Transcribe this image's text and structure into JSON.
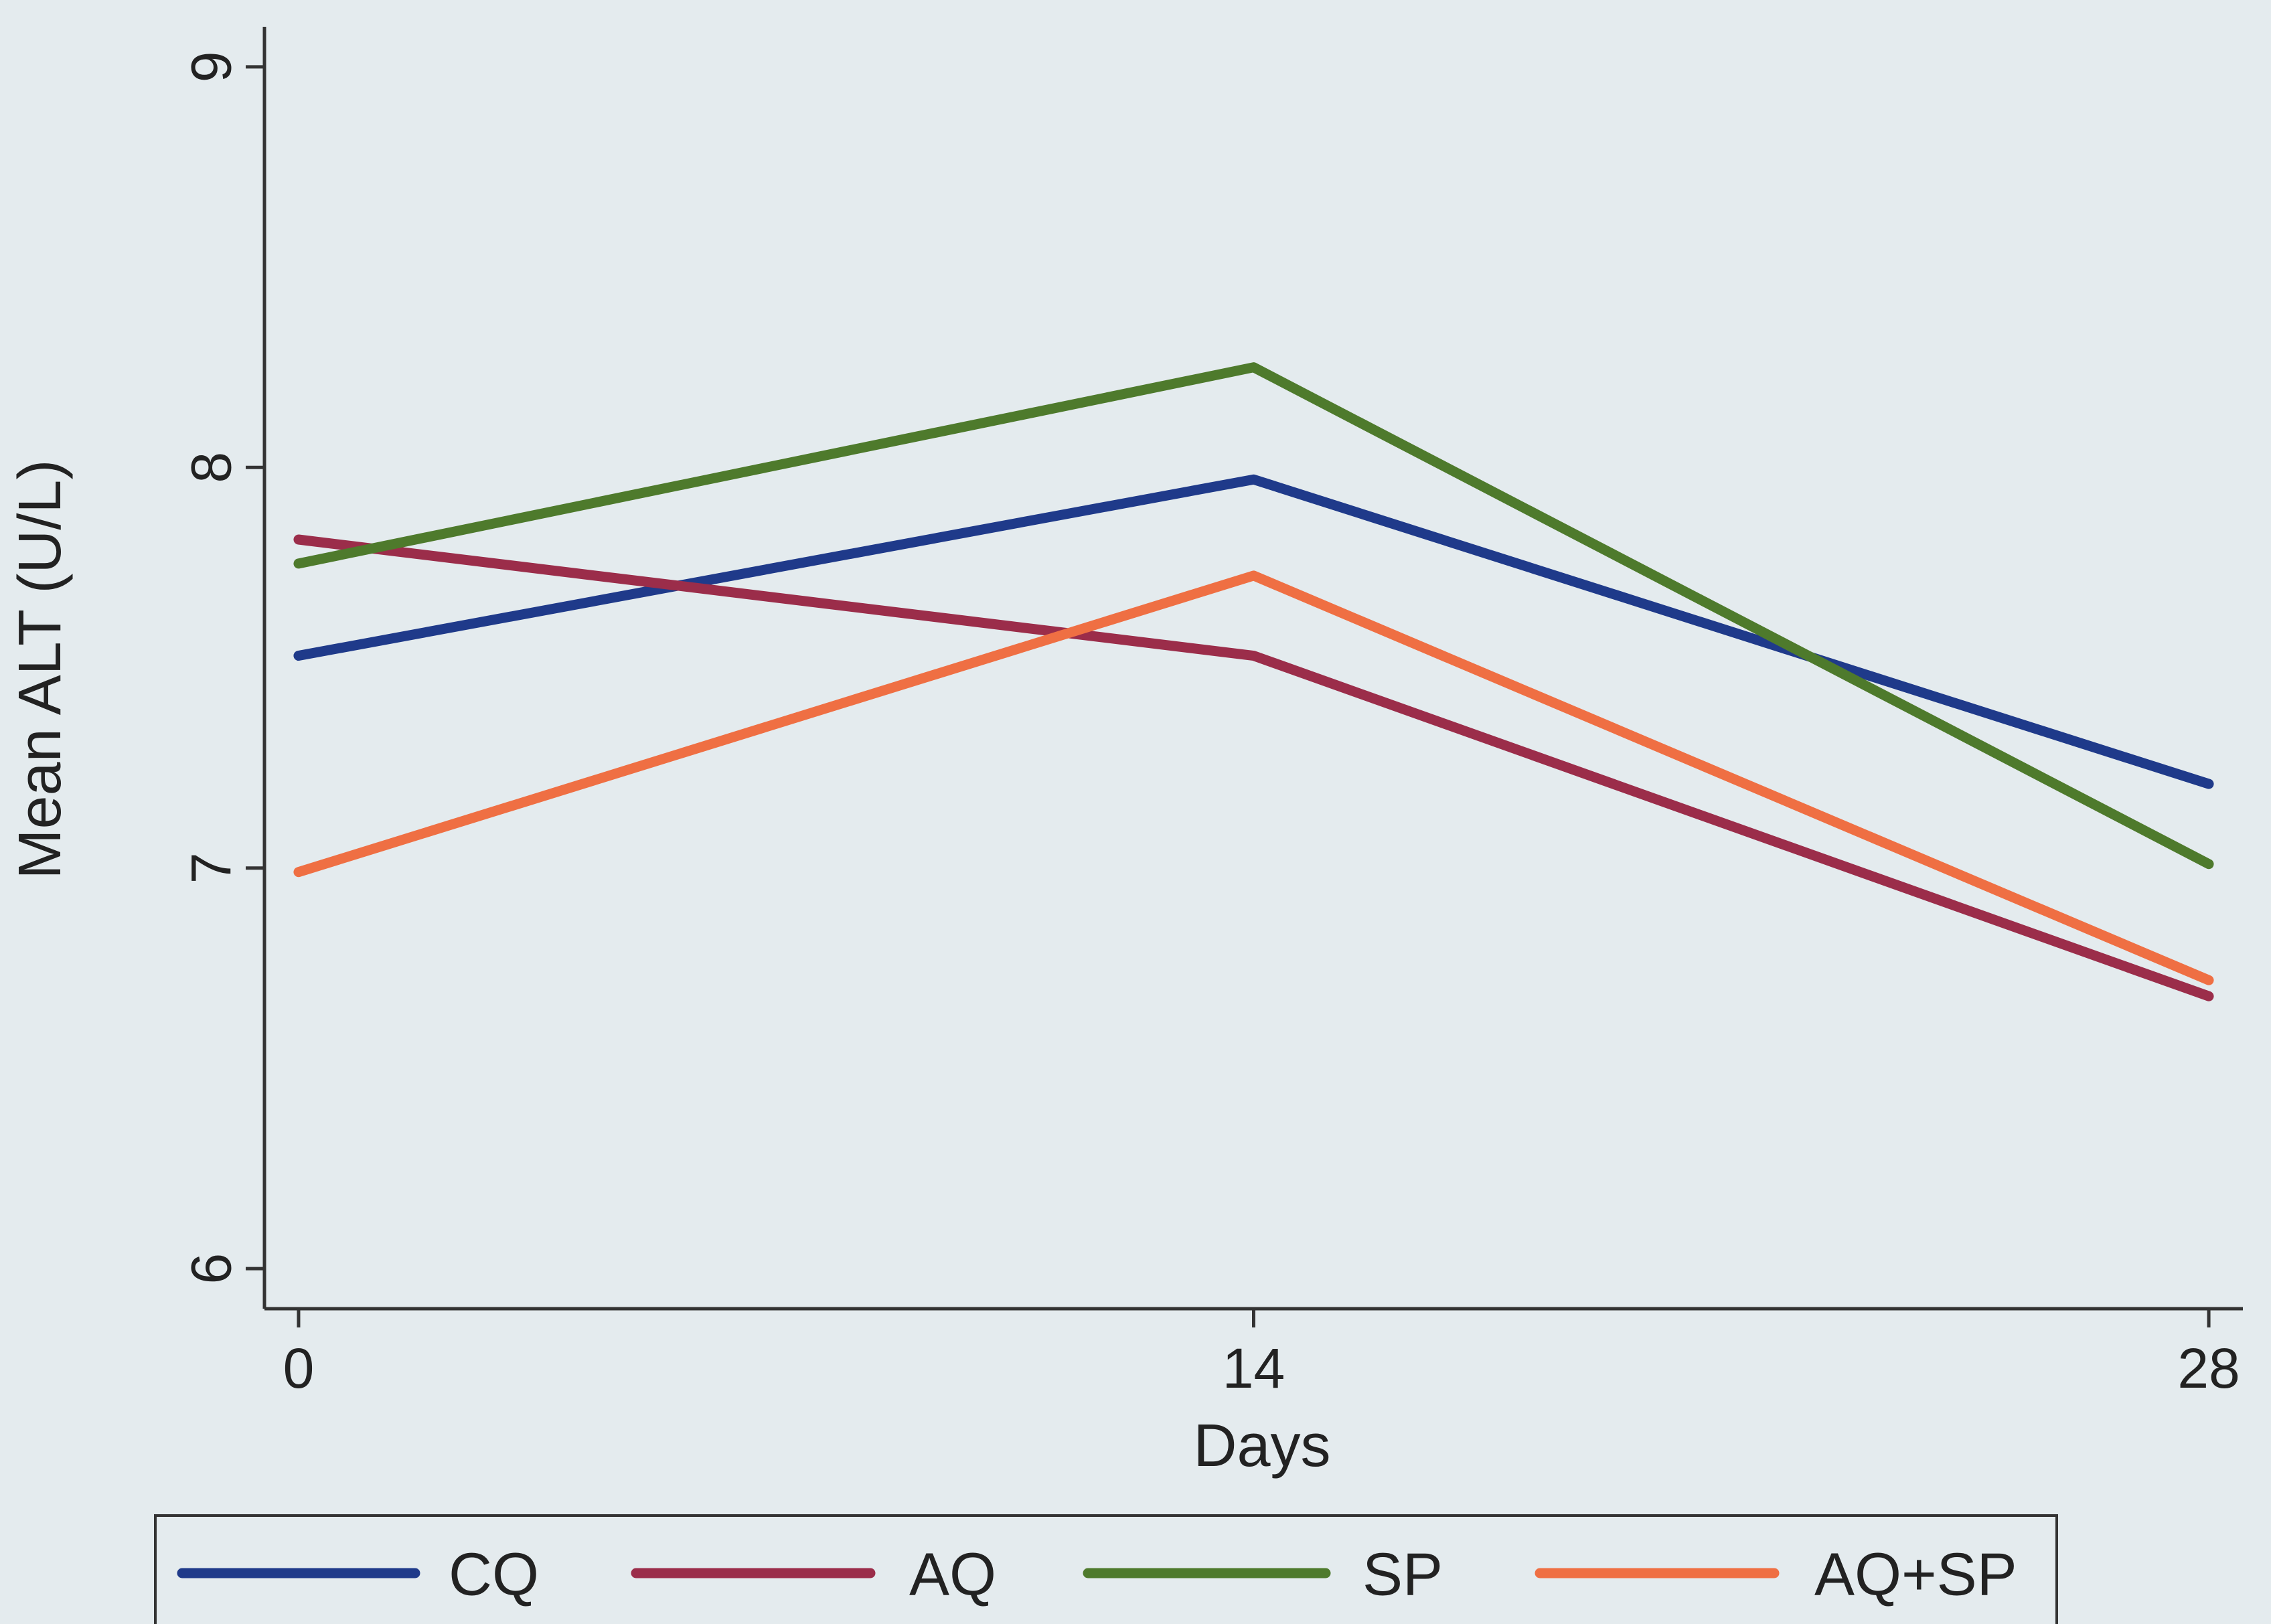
{
  "chart_data": {
    "type": "line",
    "xlabel": "Days",
    "ylabel": "Mean ALT (U/L)",
    "x": [
      0,
      14,
      28
    ],
    "x_ticks": [
      0,
      14,
      28
    ],
    "x_tick_labels": [
      "0",
      "14",
      "28"
    ],
    "xlim": [
      -0.5,
      28.5
    ],
    "ylim": [
      5.9,
      9.1
    ],
    "y_ticks": [
      6,
      7,
      8,
      9
    ],
    "y_tick_labels": [
      "6",
      "7",
      "8",
      "9"
    ],
    "grid": false,
    "legend_position": "bottom",
    "series": [
      {
        "name": "CQ",
        "color": "#1f3a8a",
        "values": [
          7.53,
          7.97,
          7.21
        ]
      },
      {
        "name": "AQ",
        "color": "#9b2d4a",
        "values": [
          7.82,
          7.53,
          6.68
        ]
      },
      {
        "name": "SP",
        "color": "#4e7a2c",
        "values": [
          7.76,
          8.25,
          7.01
        ]
      },
      {
        "name": "AQ+SP",
        "color": "#ef6f43",
        "values": [
          6.99,
          7.73,
          6.72
        ]
      }
    ]
  }
}
